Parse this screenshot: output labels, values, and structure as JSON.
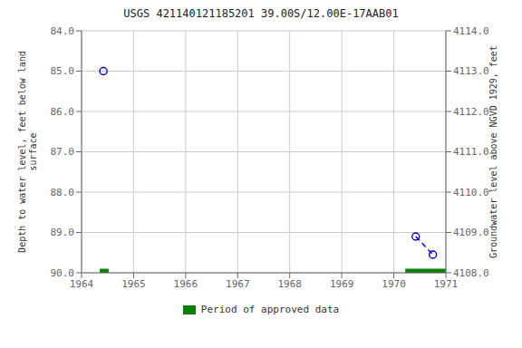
{
  "chart_data": {
    "type": "scatter",
    "title": "USGS 421140121185201 39.00S/12.00E-17AAB01",
    "y_label": "Depth to water level, feet below land\nsurface",
    "y2_label": "Groundwater level above NGVD 1929, feet",
    "xlim": [
      1964.0,
      1971.0
    ],
    "xticks": [
      1964,
      1965,
      1966,
      1967,
      1968,
      1969,
      1970,
      1971
    ],
    "ylim": [
      90.0,
      84.0
    ],
    "yticks": [
      {
        "value": 84.0,
        "label": "84.0"
      },
      {
        "value": 85.0,
        "label": "85.0"
      },
      {
        "value": 86.0,
        "label": "86.0"
      },
      {
        "value": 87.0,
        "label": "87.0"
      },
      {
        "value": 88.0,
        "label": "88.0"
      },
      {
        "value": 89.0,
        "label": "89.0"
      },
      {
        "value": 90.0,
        "label": "90.0"
      }
    ],
    "y2lim": [
      4108.0,
      4114.0
    ],
    "y2ticks": [
      {
        "value": 4114.0,
        "label": "4114.0"
      },
      {
        "value": 4113.0,
        "label": "4113.0"
      },
      {
        "value": 4112.0,
        "label": "4112.0"
      },
      {
        "value": 4111.0,
        "label": "4111.0"
      },
      {
        "value": 4110.0,
        "label": "4110.0"
      },
      {
        "value": 4109.0,
        "label": "4109.0"
      },
      {
        "value": 4108.0,
        "label": "4108.0"
      }
    ],
    "series": [
      {
        "x": [
          1964.42,
          1970.42,
          1970.75
        ],
        "values": [
          85.0,
          89.1,
          89.55
        ],
        "color": "#0000cc",
        "marker": "open_circle",
        "line_style": "none"
      },
      {
        "x": [
          1964.42,
          1970.42,
          1970.75
        ],
        "values": [
          null,
          89.1,
          89.55
        ],
        "color": "#0000cc",
        "marker": "none",
        "line_style": "dashed"
      }
    ],
    "periods": {
      "name": "Period of approved data",
      "color": "#008000",
      "ranges": [
        [
          1964.35,
          1964.52
        ],
        [
          1970.22,
          1971.0
        ]
      ]
    },
    "grid": true,
    "legend": "bottom"
  }
}
